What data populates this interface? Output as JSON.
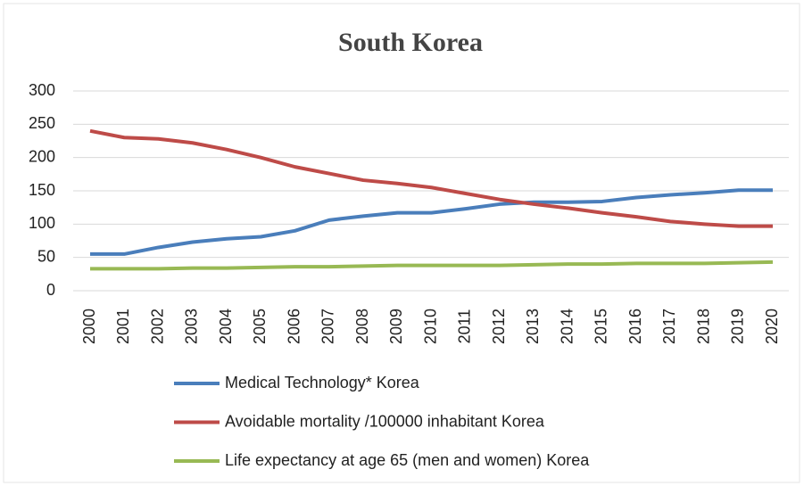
{
  "chart_data": {
    "type": "line",
    "title": "South Korea",
    "categories": [
      "2000",
      "2001",
      "2002",
      "2003",
      "2004",
      "2005",
      "2006",
      "2007",
      "2008",
      "2009",
      "2010",
      "2011",
      "2012",
      "2013",
      "2014",
      "2015",
      "2016",
      "2017",
      "2018",
      "2019",
      "2020"
    ],
    "series": [
      {
        "name": "Medical Technology* Korea",
        "color": "#4a7ebb",
        "values": [
          55,
          55,
          65,
          73,
          78,
          81,
          90,
          106,
          112,
          117,
          117,
          123,
          130,
          133,
          133,
          134,
          140,
          144,
          147,
          151,
          151
        ]
      },
      {
        "name": "Avoidable mortality /100000 inhabitant Korea",
        "color": "#be4b48",
        "values": [
          240,
          230,
          228,
          222,
          212,
          200,
          186,
          176,
          166,
          161,
          155,
          146,
          137,
          130,
          124,
          117,
          111,
          104,
          100,
          97,
          97
        ]
      },
      {
        "name": "Life expectancy at age 65 (men and women) Korea",
        "color": "#98b954",
        "values": [
          33,
          33,
          33,
          34,
          34,
          35,
          36,
          36,
          37,
          38,
          38,
          38,
          38,
          39,
          40,
          40,
          41,
          41,
          41,
          42,
          43
        ]
      }
    ],
    "ylim": [
      0,
      300
    ],
    "yticks": [
      0,
      50,
      100,
      150,
      200,
      250,
      300
    ],
    "grid": true,
    "legend": "bottom"
  }
}
